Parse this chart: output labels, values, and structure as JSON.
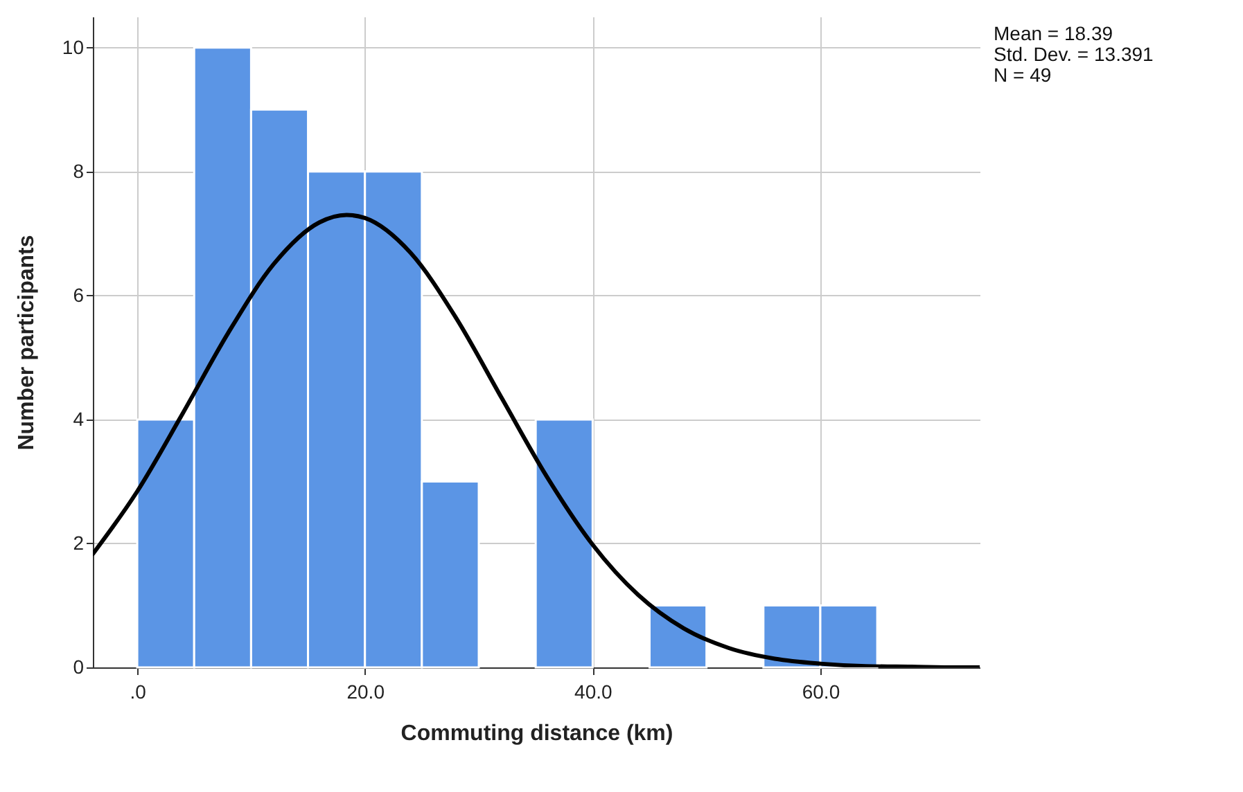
{
  "chart_data": {
    "type": "histogram",
    "xlabel": "Commuting distance (km)",
    "ylabel": "Number participants",
    "bins": [
      0,
      5,
      10,
      15,
      20,
      25,
      30,
      35,
      40,
      45,
      50,
      55,
      60,
      65
    ],
    "values": [
      4,
      10,
      9,
      8,
      8,
      3,
      0,
      4,
      0,
      1,
      0,
      1,
      1
    ],
    "color": "#5b95e5",
    "series": [
      {
        "type": "line",
        "color": "#000000",
        "x": [
          -3.9,
          0,
          4,
          8,
          12,
          16,
          18.39,
          20,
          24,
          28,
          32,
          36,
          40,
          44,
          48,
          52,
          56,
          60,
          64,
          68,
          72,
          74
        ],
        "values": [
          1.83,
          2.84,
          4.1,
          5.4,
          6.51,
          7.18,
          7.3,
          7.25,
          6.69,
          5.64,
          4.35,
          3.07,
          1.98,
          1.17,
          0.63,
          0.31,
          0.14,
          0.06,
          0.02,
          0.01,
          0,
          0
        ]
      }
    ],
    "xlim": [
      -3.9,
      74
    ],
    "ylim": [
      0,
      10.5
    ],
    "xticks": [
      {
        "value": 0,
        "label": ".0"
      },
      {
        "value": 20,
        "label": "20.0"
      },
      {
        "value": 40,
        "label": "40.0"
      },
      {
        "value": 60,
        "label": "60.0"
      }
    ],
    "yticks": [
      0,
      2,
      4,
      6,
      8,
      10
    ],
    "grid": true,
    "annotations": [
      "Mean = 18.39",
      "Std. Dev. = 13.391",
      "N = 49"
    ]
  }
}
